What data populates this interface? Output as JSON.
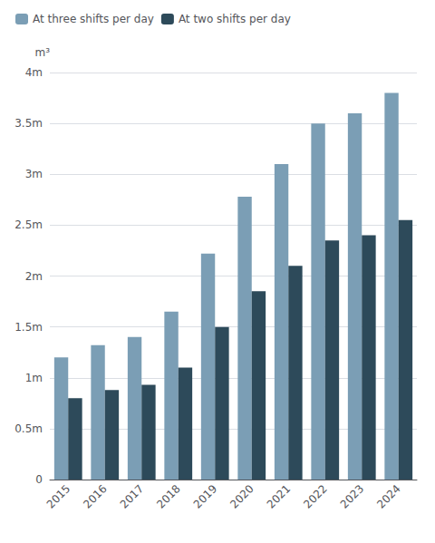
{
  "chart_data": {
    "type": "bar",
    "categories": [
      "2015",
      "2016",
      "2017",
      "2018",
      "2019",
      "2020",
      "2021",
      "2022",
      "2023",
      "2024"
    ],
    "series": [
      {
        "name": "At three shifts per day",
        "color": "#7b9eb5",
        "values": [
          1.2,
          1.32,
          1.4,
          1.65,
          2.22,
          2.78,
          3.1,
          3.5,
          3.6,
          3.8
        ]
      },
      {
        "name": "At two shifts per day",
        "color": "#2d4a5a",
        "values": [
          0.8,
          0.88,
          0.93,
          1.1,
          1.5,
          1.85,
          2.1,
          2.35,
          2.4,
          2.55
        ]
      }
    ],
    "y_label": "m³",
    "ylim": [
      0,
      4.0
    ],
    "yticks": [
      0,
      {
        "value": 0.5,
        "label": "0.5m"
      },
      {
        "value": 1.0,
        "label": "1m"
      },
      {
        "value": 1.5,
        "label": "1.5m"
      },
      {
        "value": 2.0,
        "label": "2m"
      },
      {
        "value": 2.5,
        "label": "2.5m"
      },
      {
        "value": 3.0,
        "label": "3m"
      },
      {
        "value": 3.5,
        "label": "3.5m"
      },
      {
        "value": 4.0,
        "label": "4m"
      }
    ],
    "grid": true,
    "legend": "upper left"
  }
}
